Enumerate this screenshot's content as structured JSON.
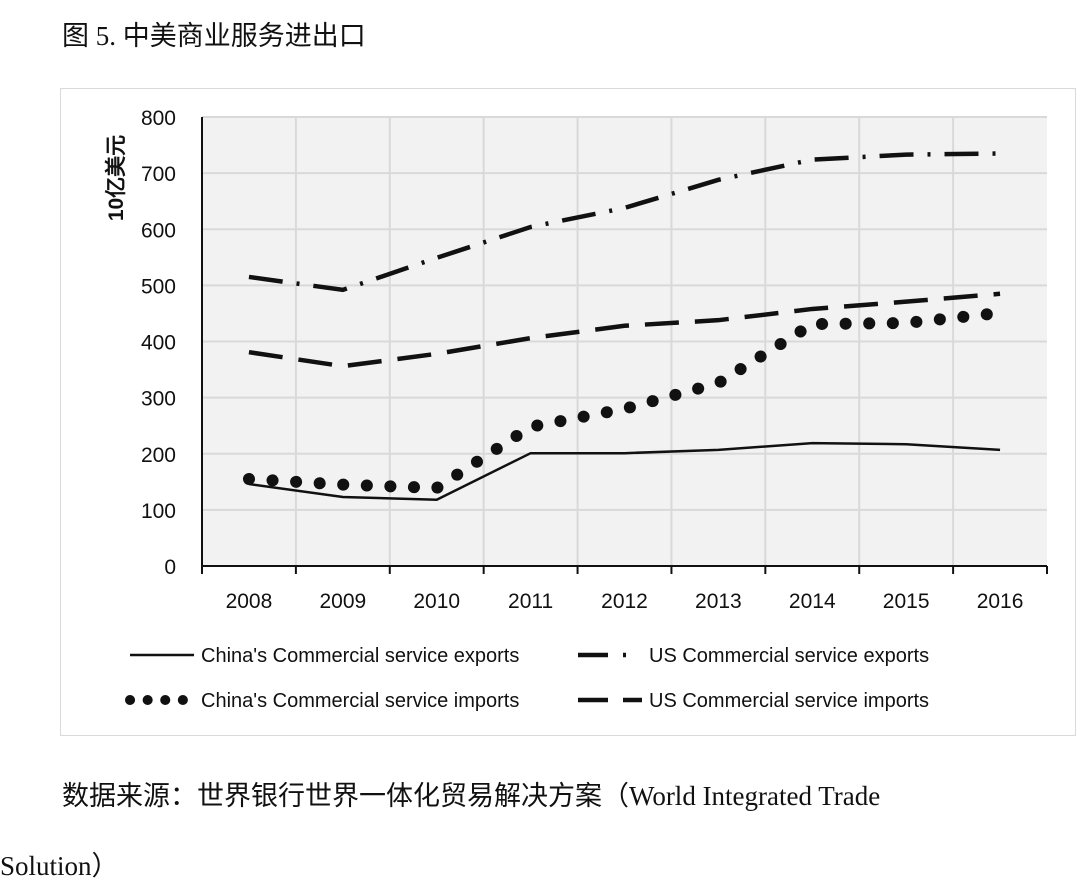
{
  "caption": "图 5. 中美商业服务进出口",
  "source_line1": "数据来源：世界银行世界一体化贸易解决方案（World Integrated Trade",
  "source_line2": "Solution）",
  "chart_data": {
    "type": "line",
    "title": "",
    "xlabel": "",
    "ylabel": "10亿美元",
    "ylim": [
      0,
      800
    ],
    "yticks": [
      0,
      100,
      200,
      300,
      400,
      500,
      600,
      700,
      800
    ],
    "grid": true,
    "legend": "bottom",
    "categories": [
      "2008",
      "2009",
      "2010",
      "2011",
      "2012",
      "2013",
      "2014",
      "2015",
      "2016"
    ],
    "series": [
      {
        "name": "China's Commercial service exports",
        "style": "solid",
        "values": [
          146,
          123,
          118,
          201,
          201,
          207,
          219,
          217,
          207
        ]
      },
      {
        "name": "US Commercial service exports",
        "style": "dash-dot",
        "values": [
          515,
          492,
          549,
          604,
          638,
          688,
          724,
          733,
          735
        ]
      },
      {
        "name": "China's Commercial service imports",
        "style": "dots",
        "values": [
          155,
          145,
          139,
          248,
          280,
          326,
          431,
          433,
          451
        ]
      },
      {
        "name": "US Commercial service imports",
        "style": "long-dash",
        "values": [
          381,
          356,
          378,
          406,
          428,
          438,
          458,
          471,
          485
        ]
      }
    ]
  }
}
